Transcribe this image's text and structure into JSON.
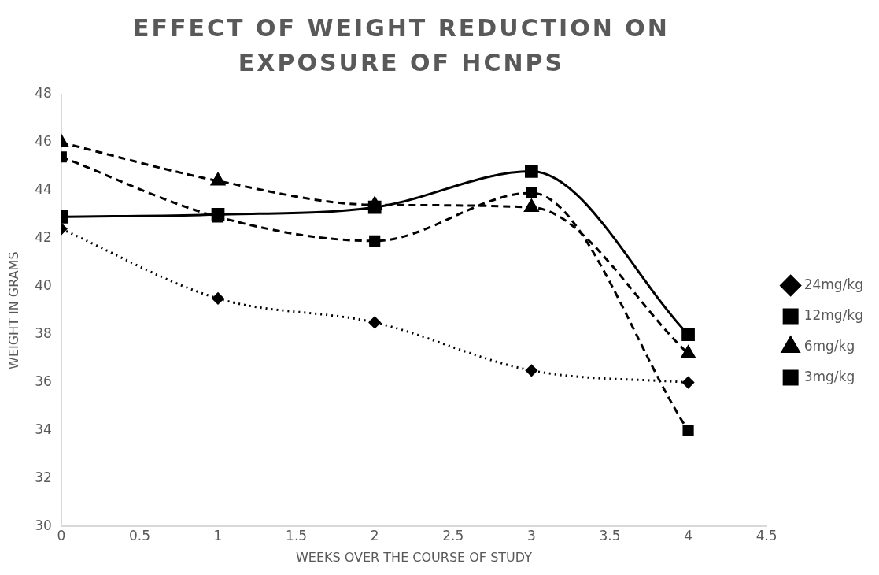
{
  "chart_data": {
    "type": "line",
    "title": "EFFECT OF WEIGHT REDUCTION ON EXPOSURE OF HCNPS",
    "xlabel": "WEEKS OVER THE COURSE OF STUDY",
    "ylabel": "WEIGHT IN GRAMS",
    "x": [
      0,
      1,
      2,
      3,
      4
    ],
    "series": [
      {
        "name": "24mg/kg",
        "color": "#000000",
        "values": [
          42.4,
          39.5,
          38.5,
          36.5,
          36
        ],
        "marker": "diamond",
        "line_style": "dotted"
      },
      {
        "name": "12mg/kg",
        "color": "#000000",
        "values": [
          45.4,
          42.9,
          41.9,
          43.9,
          34
        ],
        "marker": "square",
        "line_style": "dashed"
      },
      {
        "name": "6mg/kg",
        "color": "#000000",
        "values": [
          46,
          44.4,
          43.4,
          43.3,
          37.2
        ],
        "marker": "triangle",
        "line_style": "dashed"
      },
      {
        "name": "3mg/kg",
        "color": "#000000",
        "values": [
          42.9,
          43,
          43.3,
          44.8,
          38
        ],
        "marker": "square",
        "line_style": "solid"
      }
    ],
    "xlim": [
      0,
      4.5
    ],
    "xticks": [
      0,
      0.5,
      1,
      1.5,
      2,
      2.5,
      3,
      3.5,
      4,
      4.5
    ],
    "ylim": [
      30,
      48
    ],
    "yticks": [
      30,
      32,
      34,
      36,
      38,
      40,
      42,
      44,
      46,
      48
    ],
    "grid": false,
    "legend": "right"
  }
}
